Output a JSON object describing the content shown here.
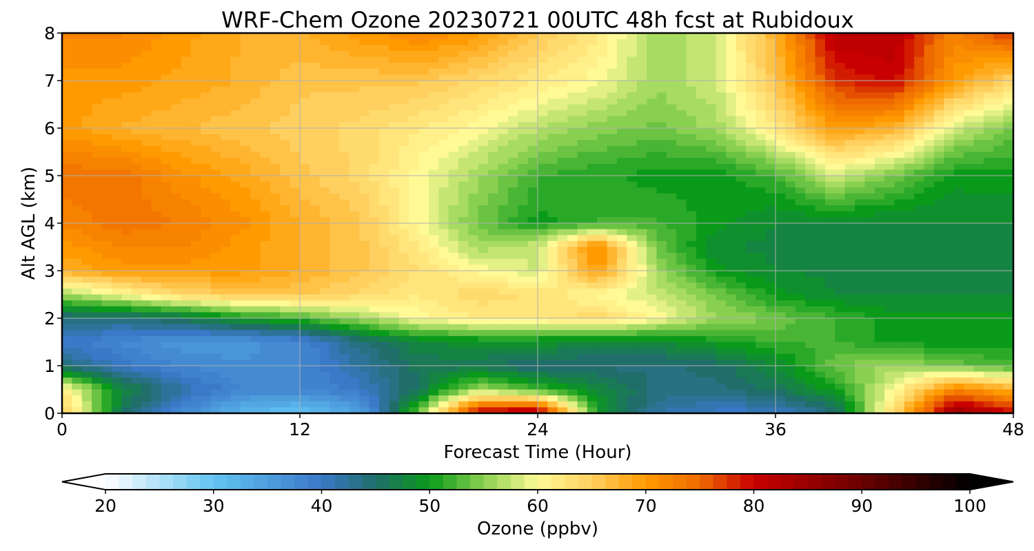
{
  "chart_data": {
    "type": "heatmap",
    "title": "WRF-Chem Ozone  20230721 00UTC 48h fcst at Rubidoux",
    "xlabel": "Forecast Time (Hour)",
    "ylabel": "Alt AGL (km)",
    "xlim": [
      0,
      48
    ],
    "ylim": [
      0,
      8
    ],
    "x_ticks": [
      0,
      12,
      24,
      36,
      48
    ],
    "y_ticks": [
      0,
      1,
      2,
      3,
      4,
      5,
      6,
      7,
      8
    ],
    "grid": true,
    "colorbar": {
      "label": "Ozone  (ppbv)",
      "range": [
        20,
        100
      ],
      "ticks": [
        20,
        30,
        40,
        50,
        60,
        70,
        80,
        90,
        100
      ],
      "extend": "both",
      "placement": "bottom",
      "stops": [
        {
          "value": 20,
          "color": "#ffffff"
        },
        {
          "value": 30,
          "color": "#62c4f2"
        },
        {
          "value": 40,
          "color": "#3a78c8"
        },
        {
          "value": 45,
          "color": "#1f6e6a"
        },
        {
          "value": 50,
          "color": "#0a9a1a"
        },
        {
          "value": 55,
          "color": "#8ad050"
        },
        {
          "value": 60,
          "color": "#fffa96"
        },
        {
          "value": 65,
          "color": "#ffd060"
        },
        {
          "value": 70,
          "color": "#ff9a00"
        },
        {
          "value": 75,
          "color": "#ee6a00"
        },
        {
          "value": 80,
          "color": "#c80000"
        },
        {
          "value": 90,
          "color": "#6a0000"
        },
        {
          "value": 100,
          "color": "#000000"
        }
      ]
    },
    "z_grid": {
      "x": [
        0,
        3,
        6,
        9,
        12,
        15,
        18,
        21,
        24,
        27,
        30,
        33,
        36,
        39,
        42,
        45,
        48
      ],
      "y": [
        0,
        0.5,
        1,
        1.5,
        2,
        2.5,
        3,
        3.5,
        4,
        5,
        6,
        7,
        8
      ],
      "values": [
        [
          66,
          46,
          38,
          32,
          30,
          34,
          54,
          82,
          84,
          50,
          42,
          40,
          40,
          44,
          64,
          86,
          80
        ],
        [
          62,
          48,
          42,
          38,
          38,
          40,
          46,
          56,
          52,
          48,
          44,
          44,
          46,
          50,
          60,
          72,
          68
        ],
        [
          44,
          40,
          38,
          37,
          38,
          42,
          46,
          46,
          44,
          44,
          44,
          45,
          48,
          54,
          56,
          54,
          52
        ],
        [
          40,
          38,
          36,
          36,
          38,
          44,
          48,
          49,
          49,
          48,
          48,
          50,
          52,
          52,
          50,
          50,
          50
        ],
        [
          44,
          44,
          46,
          50,
          52,
          56,
          60,
          62,
          62,
          64,
          60,
          56,
          54,
          52,
          50,
          50,
          50
        ],
        [
          56,
          60,
          64,
          66,
          66,
          64,
          62,
          64,
          63,
          60,
          58,
          54,
          50,
          48,
          48,
          48,
          48
        ],
        [
          68,
          70,
          70,
          70,
          68,
          66,
          63,
          60,
          58,
          70,
          56,
          50,
          48,
          48,
          48,
          48,
          48
        ],
        [
          70,
          72,
          72,
          70,
          68,
          66,
          62,
          56,
          58,
          72,
          54,
          48,
          48,
          48,
          48,
          48,
          48
        ],
        [
          72,
          74,
          73,
          71,
          68,
          66,
          60,
          54,
          50,
          52,
          52,
          50,
          48,
          48,
          48,
          48,
          48
        ],
        [
          74,
          74,
          71,
          69,
          66,
          64,
          60,
          56,
          52,
          51,
          50,
          50,
          52,
          58,
          54,
          50,
          50
        ],
        [
          70,
          68,
          67,
          66,
          65,
          64,
          62,
          60,
          57,
          55,
          54,
          56,
          62,
          70,
          68,
          58,
          54
        ],
        [
          70,
          70,
          69,
          68,
          66,
          66,
          66,
          64,
          62,
          60,
          56,
          58,
          66,
          78,
          80,
          70,
          64
        ],
        [
          72,
          72,
          70,
          68,
          68,
          70,
          72,
          70,
          66,
          62,
          56,
          58,
          68,
          82,
          82,
          72,
          78
        ]
      ]
    }
  }
}
